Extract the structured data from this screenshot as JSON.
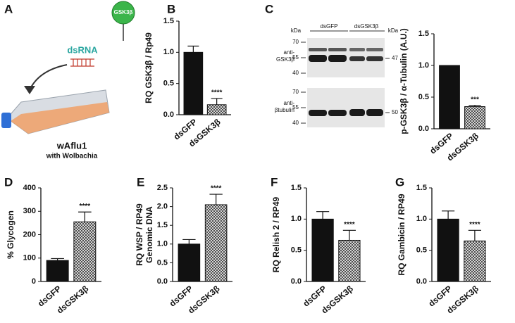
{
  "diagram": {
    "panel": "A",
    "protein": "GSK3β",
    "rna": "dsRNA",
    "cells": "wAflu1",
    "cells_note": "with Wolbachia"
  },
  "blot": {
    "kda_left": "kDa",
    "kda_right": "kDa",
    "lane_1": "dsGFP",
    "lane_2": "dsGSK3β",
    "top_markers": [
      "70",
      "55",
      "40"
    ],
    "top_antibody": [
      "anti-",
      "GSK3β"
    ],
    "top_size": "47",
    "bottom_markers": [
      "70",
      "55",
      "40"
    ],
    "bottom_antibody": [
      "anti-",
      "βtubulin"
    ],
    "bottom_size": "50"
  },
  "chart_data": [
    {
      "type": "bar",
      "panel": "B",
      "ylabel": [
        "RQ GSK3β / Rp49"
      ],
      "categories": [
        "dsGFP",
        "dsGSK3β"
      ],
      "values": [
        1.0,
        0.16
      ],
      "errors": [
        0.1,
        0.1
      ],
      "colors": [
        "#111111",
        "hatch"
      ],
      "annotation": "****",
      "ylim": [
        0,
        1.5
      ],
      "yticks": [
        {
          "value": 0,
          "label": "0.0"
        },
        0.5,
        {
          "value": 1,
          "label": "1.0"
        },
        1.5
      ]
    },
    {
      "type": "bar",
      "panel": "C",
      "ylabel": [
        "p-GSK3β / α-Tubulin (A.U.)"
      ],
      "categories": [
        "dsGFP",
        "dsGSK3β"
      ],
      "values": [
        1.0,
        0.35
      ],
      "errors": [
        0,
        0.02
      ],
      "colors": [
        "#111111",
        "hatch"
      ],
      "annotation": "***",
      "ylim": [
        0,
        1.5
      ],
      "yticks": [
        {
          "value": 0,
          "label": "0.0"
        },
        0.5,
        {
          "value": 1,
          "label": "1.0"
        },
        1.5
      ]
    },
    {
      "type": "bar",
      "panel": "D",
      "ylabel": [
        "% Glycogen"
      ],
      "categories": [
        "dsGFP",
        "dsGSK3β"
      ],
      "values": [
        90,
        255
      ],
      "errors": [
        8,
        42
      ],
      "colors": [
        "#111111",
        "hatch"
      ],
      "annotation": "****",
      "ylim": [
        0,
        400
      ],
      "yticks": [
        0,
        100,
        200,
        300,
        400
      ]
    },
    {
      "type": "bar",
      "panel": "E",
      "ylabel": [
        "RQ WSP / RP49",
        "Genomic DNA"
      ],
      "categories": [
        "dsGFP",
        "dsGSK3β"
      ],
      "values": [
        1.0,
        2.05
      ],
      "errors": [
        0.12,
        0.28
      ],
      "colors": [
        "#111111",
        "hatch"
      ],
      "annotation": "****",
      "ylim": [
        0,
        2.5
      ],
      "yticks": [
        {
          "value": 0,
          "label": "0.0"
        },
        0.5,
        {
          "value": 1,
          "label": "1.0"
        },
        1.5,
        {
          "value": 2,
          "label": "2.0"
        },
        2.5
      ]
    },
    {
      "type": "bar",
      "panel": "F",
      "ylabel": [
        "RQ Relish 2 / RP49"
      ],
      "categories": [
        "dsGFP",
        "dsGSK3β"
      ],
      "values": [
        1.0,
        0.66
      ],
      "errors": [
        0.12,
        0.16
      ],
      "colors": [
        "#111111",
        "hatch"
      ],
      "annotation": "****",
      "ylim": [
        0,
        1.5
      ],
      "yticks": [
        {
          "value": 0,
          "label": "0.0"
        },
        0.5,
        {
          "value": 1,
          "label": "1.0"
        },
        1.5
      ]
    },
    {
      "type": "bar",
      "panel": "G",
      "ylabel": [
        "RQ Gambicin / RP49"
      ],
      "categories": [
        "dsGFP",
        "dsGSK3β"
      ],
      "values": [
        1.0,
        0.65
      ],
      "errors": [
        0.13,
        0.17
      ],
      "colors": [
        "#111111",
        "hatch"
      ],
      "annotation": "****",
      "ylim": [
        0,
        1.5
      ],
      "yticks": [
        {
          "value": 0,
          "label": "0.0"
        },
        0.5,
        {
          "value": 1,
          "label": "1.0"
        },
        1.5
      ]
    }
  ]
}
